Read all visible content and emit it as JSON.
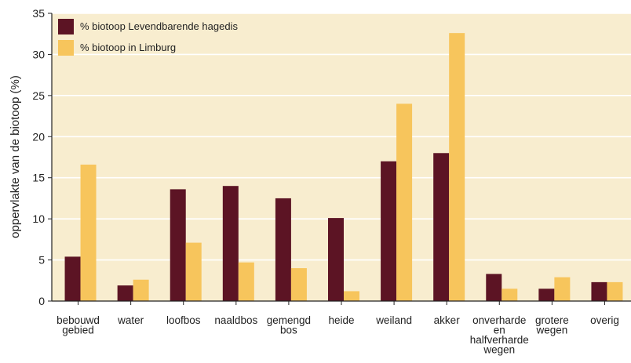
{
  "chart_data": {
    "type": "bar",
    "ylabel": "oppervlakte van de biotoop (%)",
    "xlabel": "",
    "ylim": [
      0,
      35
    ],
    "yticks": [
      0,
      5,
      10,
      15,
      20,
      25,
      30,
      35
    ],
    "grid": true,
    "legend_position": "top-left",
    "categories": [
      [
        "bebouwd",
        "gebied"
      ],
      [
        "water"
      ],
      [
        "loofbos"
      ],
      [
        "naaldbos"
      ],
      [
        "gemengd",
        "bos"
      ],
      [
        "heide"
      ],
      [
        "weiland"
      ],
      [
        "akker"
      ],
      [
        "onverharde",
        "en",
        "halfverharde",
        "wegen"
      ],
      [
        "grotere",
        "wegen"
      ],
      [
        "overig"
      ]
    ],
    "series": [
      {
        "name": "% biotoop Levendbarende hagedis",
        "color": "#5c1424",
        "values": [
          5.4,
          1.9,
          13.6,
          14.0,
          12.5,
          10.1,
          17.0,
          18.0,
          3.3,
          1.5,
          2.3
        ]
      },
      {
        "name": "% biotoop in Limburg",
        "color": "#f7c55c",
        "values": [
          16.6,
          2.6,
          7.1,
          4.7,
          4.0,
          1.2,
          24.0,
          32.6,
          1.5,
          2.9,
          2.3
        ]
      }
    ],
    "colors": {
      "plot_background": "#f8edcf",
      "grid": "#ffffff",
      "axis": "#222222"
    }
  }
}
